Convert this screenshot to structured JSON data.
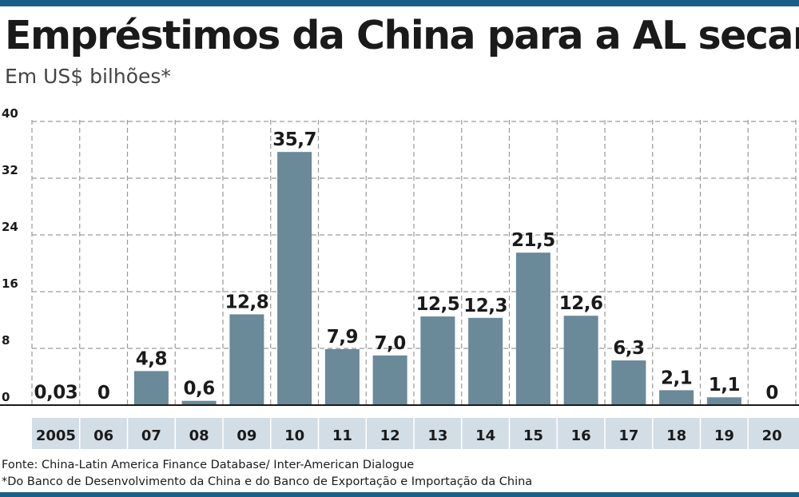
{
  "title": "Empréstimos da China para a AL secam",
  "subtitle": "Em US$ bilhões*",
  "source": "Fonte: China-Latin America Finance Database/ Inter-American Dialogue",
  "note": "*Do Banco de Desenvolvimento da China e do Banco de Exportação e Importação da China",
  "colors": {
    "bar": "#6a8999",
    "accent": "#1a5f86",
    "category_band": "#d3dde6",
    "grid": "#9a9a9a"
  },
  "chart_data": {
    "type": "bar",
    "title": "Empréstimos da China para a AL secam",
    "subtitle": "Em US$ bilhões*",
    "xlabel": "",
    "ylabel": "",
    "ylim": [
      0,
      40
    ],
    "yticks": [
      0,
      8,
      16,
      24,
      32,
      40
    ],
    "grid": true,
    "categories": [
      "2005",
      "06",
      "07",
      "08",
      "09",
      "10",
      "11",
      "12",
      "13",
      "14",
      "15",
      "16",
      "17",
      "18",
      "19",
      "20"
    ],
    "values": [
      0.03,
      0,
      4.8,
      0.6,
      12.8,
      35.7,
      7.9,
      7.0,
      12.5,
      12.3,
      21.5,
      12.6,
      6.3,
      2.1,
      1.1,
      0
    ],
    "value_labels": [
      "0,03",
      "0",
      "4,8",
      "0,6",
      "12,8",
      "35,7",
      "7,9",
      "7,0",
      "12,5",
      "12,3",
      "21,5",
      "12,6",
      "6,3",
      "2,1",
      "1,1",
      "0"
    ]
  }
}
